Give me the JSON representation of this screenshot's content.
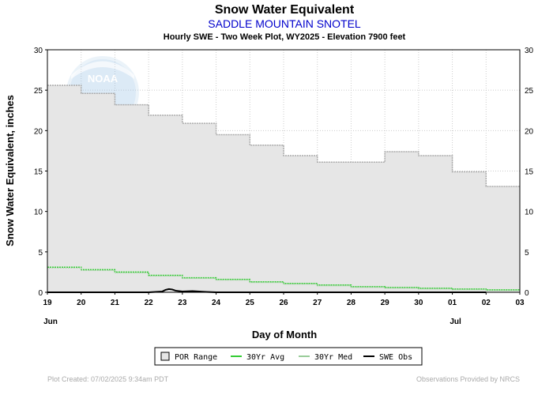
{
  "chart_data": {
    "type": "area",
    "title": "Snow Water Equivalent",
    "subtitle": "SADDLE MOUNTAIN SNOTEL",
    "subtitle2": "Hourly SWE - Two Week Plot, WY2025 -  Elevation 7900 feet",
    "xlabel": "Day of Month",
    "ylabel": "Snow Water Equivalent, inches",
    "ylim": [
      0,
      30
    ],
    "yticks": [
      "0",
      "5",
      "10",
      "15",
      "20",
      "25",
      "30"
    ],
    "xlim": [
      19,
      33
    ],
    "xticks": [
      "19",
      "20",
      "21",
      "22",
      "23",
      "24",
      "25",
      "26",
      "27",
      "28",
      "29",
      "30",
      "01",
      "02",
      "03"
    ],
    "month_labels": [
      {
        "label": "Jun",
        "day": 19
      },
      {
        "label": "Jul",
        "day": 31
      }
    ],
    "grid": true,
    "legend_position": "bottom",
    "legend": [
      "POR Range",
      "30Yr Avg",
      "30Yr Med",
      "SWE Obs"
    ],
    "series": [
      {
        "name": "POR Range",
        "color": "#aaaaaa",
        "fill": "#e6e6e6",
        "days": [
          19,
          20,
          21,
          22,
          23,
          24,
          25,
          26,
          27,
          28,
          29,
          30,
          31,
          32
        ],
        "values": [
          25.6,
          24.6,
          23.2,
          21.9,
          20.9,
          19.5,
          18.2,
          16.9,
          16.1,
          16.1,
          17.4,
          16.9,
          14.9,
          13.1
        ]
      },
      {
        "name": "30Yr Avg",
        "color": "#33cc33",
        "days": [
          19,
          20,
          21,
          22,
          23,
          24,
          25,
          26,
          27,
          28,
          29,
          30,
          31,
          32
        ],
        "values": [
          3.1,
          2.8,
          2.5,
          2.1,
          1.8,
          1.6,
          1.3,
          1.1,
          0.9,
          0.7,
          0.6,
          0.5,
          0.4,
          0.3
        ]
      },
      {
        "name": "30Yr Med",
        "color": "#99cc99",
        "days": [
          19,
          20,
          21,
          22,
          23,
          24,
          25,
          26,
          27,
          28,
          29,
          30,
          31,
          32
        ],
        "values": [
          3.0,
          2.7,
          2.4,
          2.0,
          1.7,
          1.5,
          1.2,
          1.0,
          0.8,
          0.6,
          0.5,
          0.4,
          0.3,
          0.2
        ]
      },
      {
        "name": "SWE Obs",
        "color": "#000000",
        "x": [
          19,
          20,
          21,
          22,
          22.4,
          22.5,
          22.6,
          22.7,
          22.8,
          23,
          23.3,
          23.5,
          23.7,
          24,
          25,
          26,
          27,
          28,
          29,
          30,
          31,
          32
        ],
        "values": [
          0,
          0,
          0,
          0,
          0.1,
          0.3,
          0.4,
          0.35,
          0.2,
          0.1,
          0.15,
          0.1,
          0.05,
          0,
          0,
          0,
          0,
          0,
          0,
          0,
          0,
          0
        ]
      }
    ]
  },
  "watermark": "NOAA",
  "footer": {
    "created": "Plot Created: 07/02/2025 9:34am PDT",
    "provided": "Observations Provided by NRCS"
  }
}
